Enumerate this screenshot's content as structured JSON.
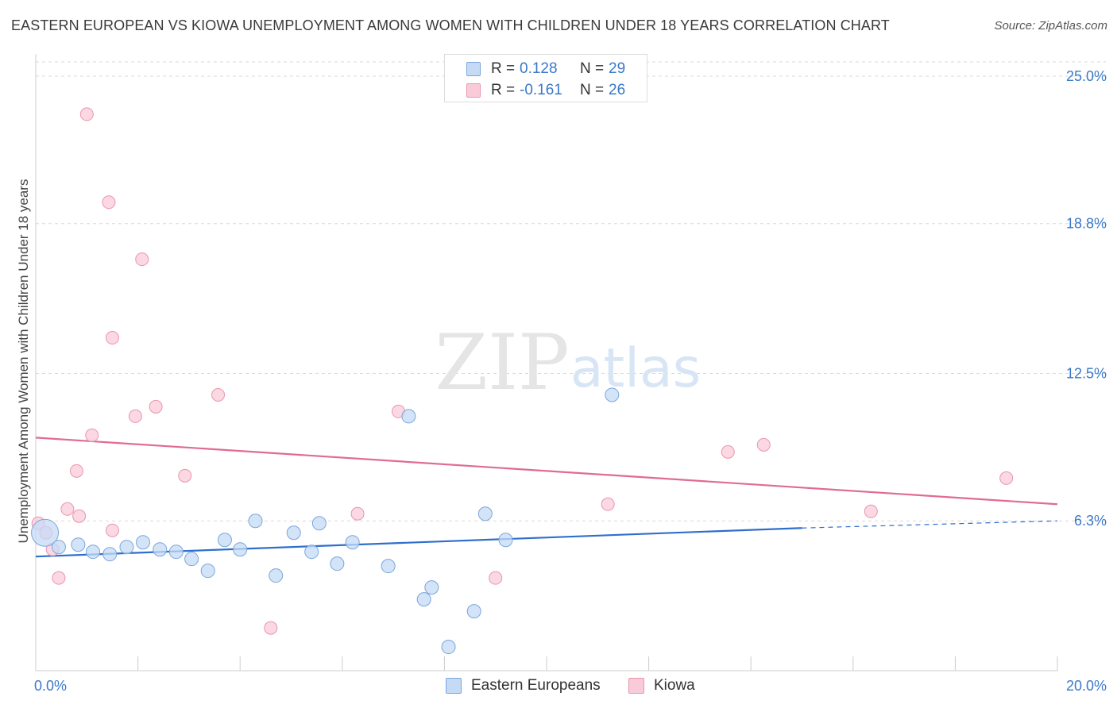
{
  "header": {
    "title": "EASTERN EUROPEAN VS KIOWA UNEMPLOYMENT AMONG WOMEN WITH CHILDREN UNDER 18 YEARS CORRELATION CHART",
    "source": "Source: ZipAtlas.com"
  },
  "watermark": {
    "zip": "ZIP",
    "atlas": "atlas"
  },
  "legend_top": [
    {
      "r_label": "R =",
      "r_value": "0.128",
      "n_label": "N =",
      "n_value": "29"
    },
    {
      "r_label": "R =",
      "r_value": "-0.161",
      "n_label": "N =",
      "n_value": "26"
    }
  ],
  "colors": {
    "blue_fill": "#c5dbf5",
    "blue_stroke": "#7aa6da",
    "blue_line": "#2f6fcc",
    "pink_fill": "#f9cbd8",
    "pink_stroke": "#e995b0",
    "pink_line": "#e06b93",
    "tick_text": "#3a78c9",
    "grid": "#d9d9d9"
  },
  "chart_data": {
    "type": "scatter",
    "title": "EASTERN EUROPEAN VS KIOWA UNEMPLOYMENT AMONG WOMEN WITH CHILDREN UNDER 18 YEARS CORRELATION CHART",
    "xlabel": "",
    "ylabel": "Unemployment Among Women with Children Under 18 years",
    "xlim": [
      0,
      20
    ],
    "ylim": [
      0,
      25.6
    ],
    "x_tick_labels": [
      "0.0%",
      "20.0%"
    ],
    "y_ticks": [
      6.3,
      12.5,
      18.8,
      25.0
    ],
    "y_tick_labels": [
      "6.3%",
      "12.5%",
      "18.8%",
      "25.0%"
    ],
    "grid": true,
    "legend": "bottom-center",
    "series": [
      {
        "name": "Eastern Europeans",
        "color": "#7aa6da",
        "r": 0.128,
        "n": 29,
        "trend": {
          "x": [
            0,
            15.0
          ],
          "y": [
            4.8,
            6.0
          ],
          "dashed_to": [
            20.0,
            6.3
          ]
        },
        "points": [
          {
            "x": 0.18,
            "y": 5.8,
            "big": true
          },
          {
            "x": 0.45,
            "y": 5.2
          },
          {
            "x": 0.83,
            "y": 5.3
          },
          {
            "x": 1.12,
            "y": 5.0
          },
          {
            "x": 1.45,
            "y": 4.9
          },
          {
            "x": 1.78,
            "y": 5.2
          },
          {
            "x": 2.1,
            "y": 5.4
          },
          {
            "x": 2.43,
            "y": 5.1
          },
          {
            "x": 2.75,
            "y": 5.0
          },
          {
            "x": 3.05,
            "y": 4.7
          },
          {
            "x": 3.37,
            "y": 4.2
          },
          {
            "x": 3.7,
            "y": 5.5
          },
          {
            "x": 4.0,
            "y": 5.1
          },
          {
            "x": 4.3,
            "y": 6.3
          },
          {
            "x": 4.7,
            "y": 4.0
          },
          {
            "x": 5.05,
            "y": 5.8
          },
          {
            "x": 5.4,
            "y": 5.0
          },
          {
            "x": 5.55,
            "y": 6.2
          },
          {
            "x": 5.9,
            "y": 4.5
          },
          {
            "x": 6.2,
            "y": 5.4
          },
          {
            "x": 6.9,
            "y": 4.4
          },
          {
            "x": 7.3,
            "y": 10.7
          },
          {
            "x": 7.6,
            "y": 3.0
          },
          {
            "x": 7.75,
            "y": 3.5
          },
          {
            "x": 8.08,
            "y": 1.0
          },
          {
            "x": 8.58,
            "y": 2.5
          },
          {
            "x": 8.8,
            "y": 6.6
          },
          {
            "x": 9.2,
            "y": 5.5
          },
          {
            "x": 11.28,
            "y": 11.6
          }
        ]
      },
      {
        "name": "Kiowa",
        "color": "#e995b0",
        "r": -0.161,
        "n": 26,
        "trend": {
          "x": [
            0,
            20.0
          ],
          "y": [
            9.8,
            7.0
          ]
        },
        "points": [
          {
            "x": 0.05,
            "y": 6.2
          },
          {
            "x": 0.2,
            "y": 5.8
          },
          {
            "x": 0.33,
            "y": 5.1
          },
          {
            "x": 0.45,
            "y": 3.9
          },
          {
            "x": 0.62,
            "y": 6.8
          },
          {
            "x": 0.8,
            "y": 8.4
          },
          {
            "x": 0.85,
            "y": 6.5
          },
          {
            "x": 1.1,
            "y": 9.9
          },
          {
            "x": 1.0,
            "y": 23.4
          },
          {
            "x": 1.43,
            "y": 19.7
          },
          {
            "x": 1.5,
            "y": 14.0
          },
          {
            "x": 1.5,
            "y": 5.9
          },
          {
            "x": 1.95,
            "y": 10.7
          },
          {
            "x": 2.08,
            "y": 17.3
          },
          {
            "x": 2.35,
            "y": 11.1
          },
          {
            "x": 2.92,
            "y": 8.2
          },
          {
            "x": 3.57,
            "y": 11.6
          },
          {
            "x": 4.6,
            "y": 1.8
          },
          {
            "x": 6.3,
            "y": 6.6
          },
          {
            "x": 7.1,
            "y": 10.9
          },
          {
            "x": 9.0,
            "y": 3.9
          },
          {
            "x": 11.2,
            "y": 7.0
          },
          {
            "x": 13.55,
            "y": 9.2
          },
          {
            "x": 14.25,
            "y": 9.5
          },
          {
            "x": 16.35,
            "y": 6.7
          },
          {
            "x": 19.0,
            "y": 8.1
          }
        ]
      }
    ]
  },
  "legend_bottom": [
    {
      "label": "Eastern Europeans"
    },
    {
      "label": "Kiowa"
    }
  ]
}
